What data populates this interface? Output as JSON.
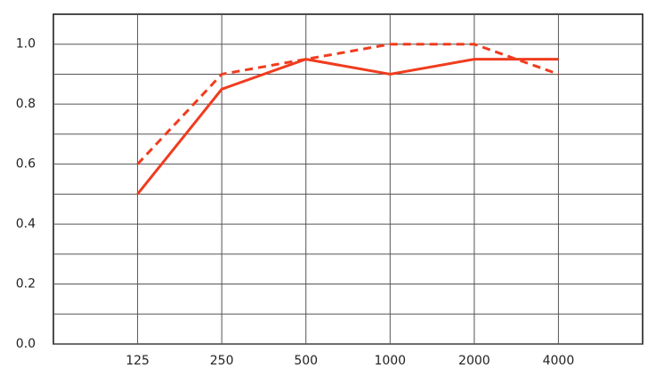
{
  "chart_data": {
    "type": "line",
    "categories": [
      "125",
      "250",
      "500",
      "1000",
      "2000",
      "4000"
    ],
    "series": [
      {
        "color": "#f03c1e",
        "dashed": false,
        "values": [
          0.5,
          0.85,
          0.95,
          0.9,
          0.95,
          0.95
        ]
      },
      {
        "color": "#f03c1e",
        "dashed": true,
        "values": [
          0.6,
          0.9,
          0.95,
          1.0,
          1.0,
          0.9
        ]
      }
    ],
    "ylim": [
      0,
      1.1
    ],
    "yticks": [
      {
        "value": 0,
        "label": "0.0"
      },
      0.2,
      0.4,
      0.6,
      0.8,
      {
        "value": 1,
        "label": "1.0"
      }
    ],
    "minor_yticks": [
      0.1,
      0.3,
      0.5,
      0.7,
      0.9
    ],
    "grid": true
  }
}
